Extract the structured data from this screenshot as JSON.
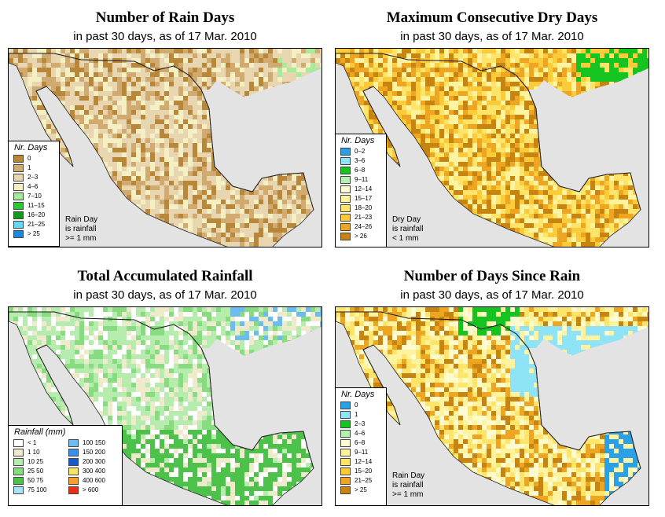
{
  "panels": [
    {
      "id": "rain-days",
      "title": "Number of Rain Days",
      "subtitle": "in past 30 days, as of  17 Mar. 2010",
      "legend_title": "Nr. Days",
      "legend_items": [
        {
          "label": "0",
          "color": "#b8873a"
        },
        {
          "label": "1",
          "color": "#d0aa6e"
        },
        {
          "label": "2–3",
          "color": "#e8d6b0"
        },
        {
          "label": "4–6",
          "color": "#f4f0c4"
        },
        {
          "label": "7–10",
          "color": "#a8ea9c"
        },
        {
          "label": "11–15",
          "color": "#2fc53a"
        },
        {
          "label": "16–20",
          "color": "#129a1f"
        },
        {
          "label": "21–25",
          "color": "#6ad6f0"
        },
        {
          "label": "> 25",
          "color": "#1e88d8"
        }
      ],
      "note": [
        "Rain Day",
        "is rainfall",
        ">= 1 mm"
      ]
    },
    {
      "id": "dry-days",
      "title": "Maximum Consecutive Dry Days",
      "subtitle": "in past 30 days, as of  17 Mar. 2010",
      "legend_title": "Nr. Days",
      "legend_items": [
        {
          "label": "0–2",
          "color": "#2aa0e6"
        },
        {
          "label": "3–6",
          "color": "#8ee4f6"
        },
        {
          "label": "6–8",
          "color": "#15c41f"
        },
        {
          "label": "9–11",
          "color": "#b4f0b0"
        },
        {
          "label": "12–14",
          "color": "#fffbd0"
        },
        {
          "label": "15–17",
          "color": "#fff3a0"
        },
        {
          "label": "18–20",
          "color": "#ffe46a"
        },
        {
          "label": "21–23",
          "color": "#fccb3a"
        },
        {
          "label": "24–26",
          "color": "#eea522"
        },
        {
          "label": "> 26",
          "color": "#c88410"
        }
      ],
      "note": [
        "Dry Day",
        "is rainfall",
        "< 1 mm"
      ]
    },
    {
      "id": "total-rainfall",
      "title": "Total Accumulated Rainfall",
      "subtitle": "in past 30 days, as of  17 Mar. 2010",
      "legend_title": "Rainfall (mm)",
      "legend_items": [
        {
          "label": "< 1",
          "color": "#ffffff"
        },
        {
          "label": "1    10",
          "color": "#f0eacc"
        },
        {
          "label": "10    25",
          "color": "#b6ecae"
        },
        {
          "label": "25    50",
          "color": "#86dc7e"
        },
        {
          "label": "50    75",
          "color": "#4cc24a"
        },
        {
          "label": "75   100",
          "color": "#a8e4f4"
        },
        {
          "label": "100   150",
          "color": "#6cbcf0"
        },
        {
          "label": "150   200",
          "color": "#3a8ee6"
        },
        {
          "label": "200   300",
          "color": "#1a58c8"
        },
        {
          "label": "300   400",
          "color": "#f6e468"
        },
        {
          "label": "400   600",
          "color": "#f4a02c"
        },
        {
          "label": "> 600",
          "color": "#e83018"
        }
      ],
      "note": []
    },
    {
      "id": "days-since-rain",
      "title": "Number of Days Since Rain",
      "subtitle": "in past 30 days, as of  17 Mar. 2010",
      "legend_title": "Nr. Days",
      "legend_items": [
        {
          "label": "0",
          "color": "#2aa0e6"
        },
        {
          "label": "1",
          "color": "#8ee4f6"
        },
        {
          "label": "2–3",
          "color": "#15c41f"
        },
        {
          "label": "4–6",
          "color": "#b4f0b0"
        },
        {
          "label": "6–8",
          "color": "#fffbd0"
        },
        {
          "label": "9–11",
          "color": "#fff3a0"
        },
        {
          "label": "12–14",
          "color": "#ffe46a"
        },
        {
          "label": "15–20",
          "color": "#fccb3a"
        },
        {
          "label": "21–25",
          "color": "#eea522"
        },
        {
          "label": "> 25",
          "color": "#c88410"
        }
      ],
      "note": [
        "Rain Day",
        "is rainfall",
        ">= 1 mm"
      ]
    }
  ]
}
